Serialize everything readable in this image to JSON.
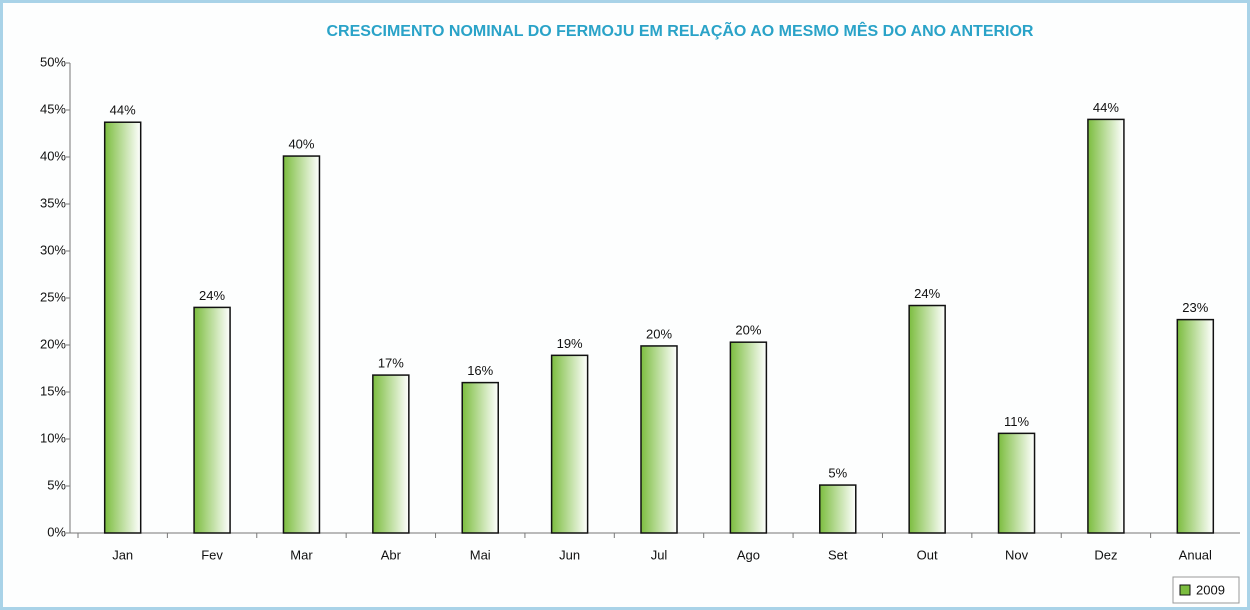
{
  "chart_data": {
    "type": "bar",
    "title": "CRESCIMENTO NOMINAL DO FERMOJU EM RELAÇÃO AO MESMO MÊS DO ANO ANTERIOR",
    "categories": [
      "Jan",
      "Fev",
      "Mar",
      "Abr",
      "Mai",
      "Jun",
      "Jul",
      "Ago",
      "Set",
      "Out",
      "Nov",
      "Dez",
      "Anual"
    ],
    "series": [
      {
        "name": "2009",
        "color": "#7cbd3f",
        "values": [
          43.7,
          24,
          40.1,
          16.8,
          16,
          18.9,
          19.9,
          20.3,
          5.1,
          24.2,
          10.6,
          44,
          22.7
        ],
        "value_labels": [
          "44%",
          "24%",
          "40%",
          "17%",
          "16%",
          "19%",
          "20%",
          "20%",
          "5%",
          "24%",
          "11%",
          "44%",
          "23%"
        ]
      }
    ],
    "ylim": [
      0,
      50
    ],
    "yticks": [
      {
        "value": 0,
        "label": "0%"
      },
      {
        "value": 5,
        "label": "5%"
      },
      {
        "value": 10,
        "label": "10%"
      },
      {
        "value": 15,
        "label": "15%"
      },
      {
        "value": 20,
        "label": "20%"
      },
      {
        "value": 25,
        "label": "25%"
      },
      {
        "value": 30,
        "label": "30%"
      },
      {
        "value": 35,
        "label": "35%"
      },
      {
        "value": 40,
        "label": "40%"
      },
      {
        "value": 45,
        "label": "45%"
      },
      {
        "value": 50,
        "label": "50%"
      }
    ],
    "legend": "bottom-right",
    "grid": false
  }
}
